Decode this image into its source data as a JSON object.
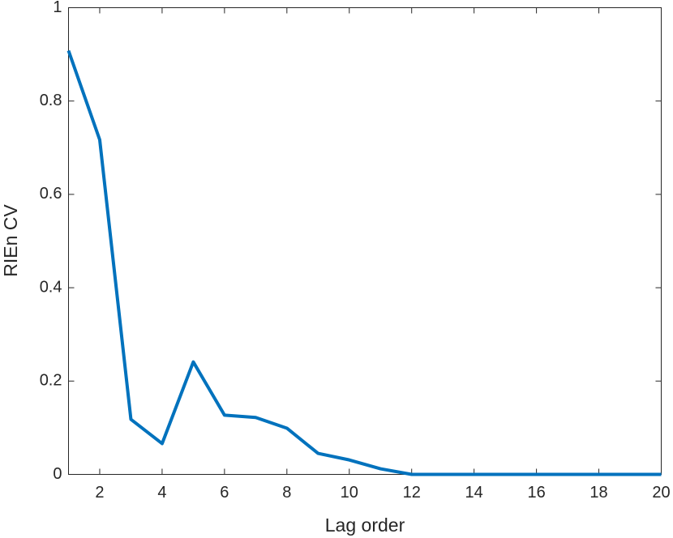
{
  "chart_data": {
    "type": "line",
    "xlabel": "Lag order",
    "ylabel": "RIEn CV",
    "x": [
      1,
      2,
      3,
      4,
      5,
      6,
      7,
      8,
      9,
      10,
      11,
      12,
      13,
      14,
      15,
      16,
      17,
      18,
      19,
      20
    ],
    "series": [
      {
        "name": "RIEn CV",
        "color": "#0072bd",
        "values": [
          0.908,
          0.717,
          0.118,
          0.066,
          0.241,
          0.127,
          0.122,
          0.099,
          0.045,
          0.031,
          0.012,
          0,
          0,
          0,
          0,
          0,
          0,
          0,
          0,
          0
        ]
      }
    ],
    "xlim": [
      1,
      20
    ],
    "xticks": [
      2,
      4,
      6,
      8,
      10,
      12,
      14,
      16,
      18,
      20
    ],
    "ylim": [
      0,
      1
    ],
    "yticks": [
      0,
      0.2,
      0.4,
      0.6,
      0.8,
      1
    ],
    "grid": false
  }
}
